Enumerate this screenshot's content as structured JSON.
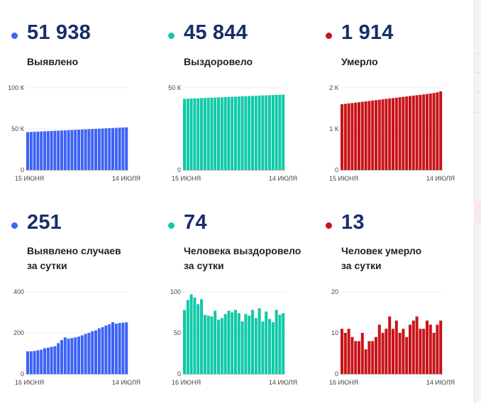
{
  "panels": [
    {
      "id": "detected-total",
      "value": "51 938",
      "label_lines": [
        "Выявлено"
      ],
      "color": "#3d63f5",
      "chart_data": {
        "type": "bar",
        "x_start_label": "15 июня",
        "x_end_label": "14 июля",
        "y_ticks": [
          {
            "value": 0,
            "label": "0"
          },
          {
            "value": 50000,
            "label": "50 К"
          },
          {
            "value": 100000,
            "label": "100 К"
          }
        ],
        "ylim": [
          0,
          100000
        ],
        "values": [
          46100,
          46300,
          46500,
          46700,
          46900,
          47100,
          47300,
          47500,
          47700,
          47900,
          48100,
          48300,
          48500,
          48700,
          48900,
          49100,
          49300,
          49500,
          49700,
          49900,
          50100,
          50300,
          50500,
          50700,
          50900,
          51100,
          51300,
          51500,
          51700,
          51938
        ]
      }
    },
    {
      "id": "recovered-total",
      "value": "45 844",
      "label_lines": [
        "Выздоровело"
      ],
      "color": "#10c9a7",
      "chart_data": {
        "type": "bar",
        "x_start_label": "15 июня",
        "x_end_label": "14 июля",
        "y_ticks": [
          {
            "value": 0,
            "label": "0"
          },
          {
            "value": 50000,
            "label": "50 К"
          }
        ],
        "ylim": [
          0,
          50000
        ],
        "values": [
          43300,
          43390,
          43480,
          43570,
          43660,
          43750,
          43840,
          43930,
          44020,
          44110,
          44200,
          44290,
          44380,
          44470,
          44560,
          44650,
          44740,
          44830,
          44920,
          45010,
          45100,
          45190,
          45280,
          45370,
          45460,
          45550,
          45640,
          45730,
          45800,
          45844
        ]
      }
    },
    {
      "id": "died-total",
      "value": "1 914",
      "label_lines": [
        "Умерло"
      ],
      "color": "#c71419",
      "chart_data": {
        "type": "bar",
        "x_start_label": "15 июня",
        "x_end_label": "14 июля",
        "y_ticks": [
          {
            "value": 0,
            "label": "0"
          },
          {
            "value": 1000,
            "label": "1 К"
          },
          {
            "value": 2000,
            "label": "2 К"
          }
        ],
        "ylim": [
          0,
          2000
        ],
        "values": [
          1600,
          1610,
          1620,
          1630,
          1640,
          1650,
          1660,
          1670,
          1680,
          1690,
          1700,
          1710,
          1720,
          1730,
          1740,
          1750,
          1760,
          1770,
          1780,
          1790,
          1800,
          1810,
          1820,
          1830,
          1840,
          1850,
          1860,
          1875,
          1890,
          1914
        ]
      }
    },
    {
      "id": "detected-daily",
      "value": "251",
      "label_lines": [
        "Выявлено случаев",
        "за сутки"
      ],
      "color": "#3d63f5",
      "chart_data": {
        "type": "bar",
        "x_start_label": "16 июня",
        "x_end_label": "14 июля",
        "y_ticks": [
          {
            "value": 0,
            "label": "0"
          },
          {
            "value": 200,
            "label": "200"
          },
          {
            "value": 400,
            "label": "400"
          }
        ],
        "ylim": [
          0,
          400
        ],
        "values": [
          110,
          110,
          112,
          115,
          118,
          125,
          128,
          132,
          135,
          150,
          165,
          178,
          172,
          175,
          178,
          182,
          188,
          195,
          200,
          208,
          212,
          222,
          228,
          236,
          242,
          252,
          245,
          248,
          250,
          251
        ]
      }
    },
    {
      "id": "recovered-daily",
      "value": "74",
      "label_lines": [
        "Человека выздоровело",
        "за сутки"
      ],
      "color": "#10c9a7",
      "chart_data": {
        "type": "bar",
        "x_start_label": "16 июня",
        "x_end_label": "14 июля",
        "y_ticks": [
          {
            "value": 0,
            "label": "0"
          },
          {
            "value": 50,
            "label": "50"
          },
          {
            "value": 100,
            "label": "100"
          }
        ],
        "ylim": [
          0,
          100
        ],
        "values": [
          78,
          90,
          97,
          93,
          85,
          91,
          72,
          71,
          70,
          77,
          66,
          68,
          73,
          77,
          75,
          78,
          74,
          64,
          73,
          71,
          78,
          68,
          80,
          64,
          76,
          67,
          63,
          78,
          72,
          74
        ]
      }
    },
    {
      "id": "died-daily",
      "value": "13",
      "label_lines": [
        "Человек умерло",
        "за сутки"
      ],
      "color": "#c71419",
      "chart_data": {
        "type": "bar",
        "x_start_label": "16 июня",
        "x_end_label": "14 июля",
        "y_ticks": [
          {
            "value": 0,
            "label": "0"
          },
          {
            "value": 10,
            "label": "10"
          },
          {
            "value": 20,
            "label": "20"
          }
        ],
        "ylim": [
          0,
          20
        ],
        "values": [
          11,
          10,
          11,
          9,
          8,
          8,
          10,
          6,
          8,
          8,
          9,
          12,
          10,
          11,
          14,
          11,
          13,
          10,
          11,
          9,
          12,
          13,
          14,
          11,
          11,
          13,
          12,
          10,
          12,
          13
        ]
      }
    }
  ]
}
